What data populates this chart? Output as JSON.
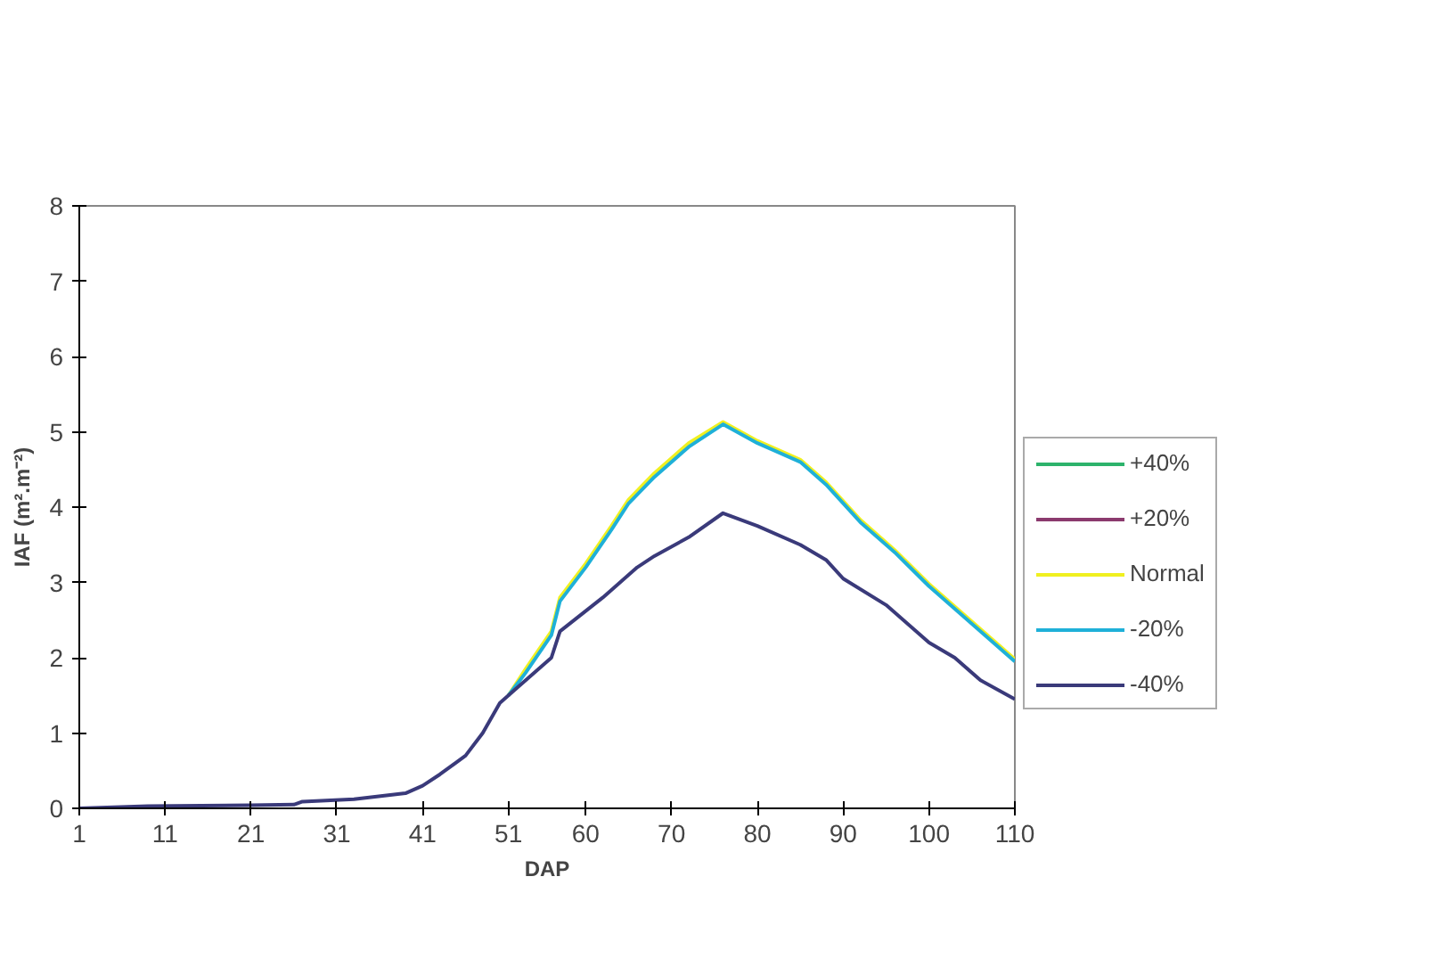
{
  "chart_data": {
    "type": "line",
    "xlabel": "DAP",
    "ylabel": "IAF (m².m⁻²)",
    "xlim": [
      1,
      110
    ],
    "ylim": [
      0,
      8
    ],
    "xticks": [
      1,
      11,
      21,
      31,
      41,
      51,
      60,
      70,
      80,
      90,
      100,
      110
    ],
    "yticks": [
      0,
      1,
      2,
      3,
      4,
      5,
      6,
      7,
      8
    ],
    "grid": false,
    "legend": "right",
    "line_style": "solid",
    "marker": "none",
    "series": [
      {
        "name": "+40%",
        "color": "#2db36b"
      },
      {
        "name": "+20%",
        "color": "#8b3a6e"
      },
      {
        "name": "Normal",
        "color": "#f0f020",
        "x": [
          51,
          53,
          56,
          57,
          60,
          63,
          65,
          68,
          72,
          76,
          80,
          85,
          88,
          92,
          96,
          100,
          105,
          110
        ],
        "values": [
          1.5,
          1.85,
          2.35,
          2.8,
          3.25,
          3.75,
          4.1,
          4.45,
          4.85,
          5.13,
          4.88,
          4.63,
          4.33,
          3.83,
          3.43,
          2.98,
          2.48,
          1.98
        ]
      },
      {
        "name": "-20%",
        "color": "#1fb0d8",
        "x": [
          51,
          53,
          56,
          57,
          60,
          63,
          65,
          68,
          72,
          76,
          80,
          85,
          88,
          92,
          96,
          100,
          105,
          110
        ],
        "values": [
          1.5,
          1.8,
          2.3,
          2.75,
          3.2,
          3.7,
          4.05,
          4.4,
          4.8,
          5.1,
          4.85,
          4.6,
          4.3,
          3.8,
          3.4,
          2.95,
          2.45,
          1.95
        ]
      },
      {
        "name": "-40%",
        "color": "#3a3a7a",
        "x": [
          1,
          9,
          21,
          26,
          27,
          33,
          39,
          41,
          43,
          46,
          48,
          50,
          52,
          56,
          57,
          62,
          66,
          68,
          72,
          76,
          80,
          85,
          88,
          90,
          95,
          100,
          103,
          106,
          110
        ],
        "values": [
          0,
          0.03,
          0.04,
          0.05,
          0.09,
          0.12,
          0.2,
          0.3,
          0.45,
          0.7,
          1.0,
          1.4,
          1.6,
          2.0,
          2.35,
          2.8,
          3.2,
          3.35,
          3.6,
          3.92,
          3.75,
          3.5,
          3.3,
          3.05,
          2.7,
          2.2,
          2.0,
          1.7,
          1.45
        ]
      }
    ]
  }
}
